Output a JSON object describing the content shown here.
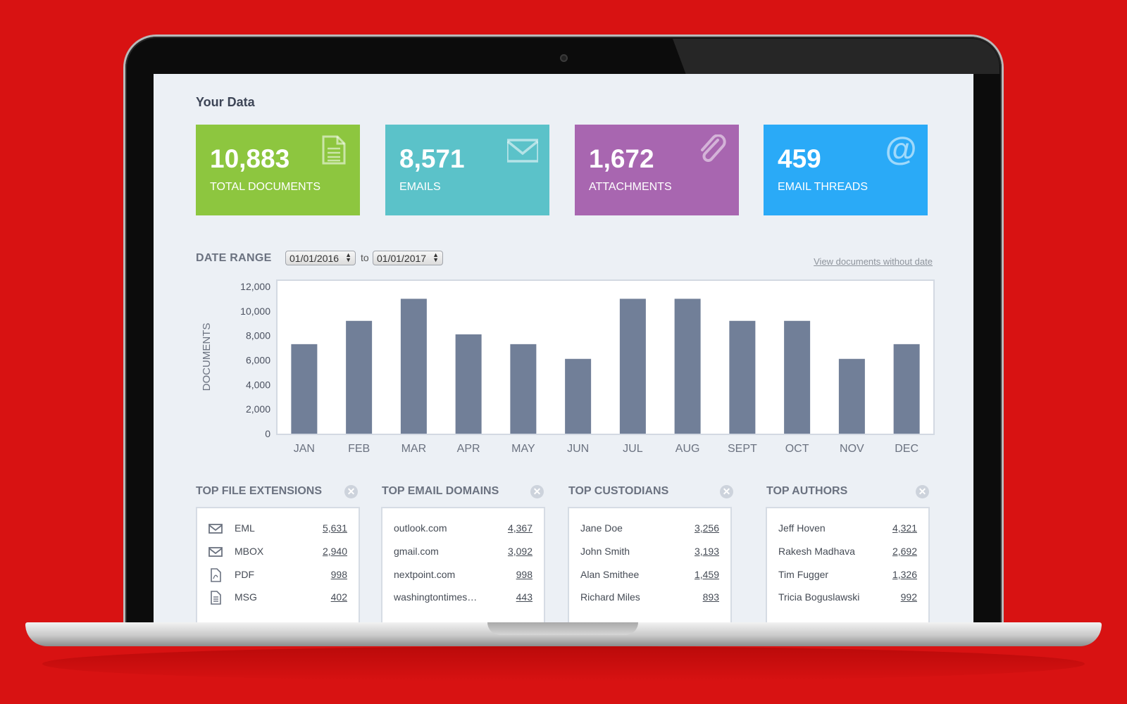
{
  "header": {
    "title": "Your Data"
  },
  "stats": [
    {
      "value": "10,883",
      "label": "TOTAL DOCUMENTS",
      "icon": "document-icon",
      "color": "#8dc63f"
    },
    {
      "value": "8,571",
      "label": "EMAILS",
      "icon": "envelope-icon",
      "color": "#5bc2c9"
    },
    {
      "value": "1,672",
      "label": "ATTACHMENTS",
      "icon": "paperclip-icon",
      "color": "#a866b0"
    },
    {
      "value": "459",
      "label": "EMAIL THREADS",
      "icon": "at-sign-icon",
      "color": "#2aaaf7"
    }
  ],
  "date_range": {
    "label": "DATE RANGE",
    "from": "01/01/2016",
    "to_label": "to",
    "to": "01/01/2017",
    "view_link": "View documents without date"
  },
  "chart_data": {
    "type": "bar",
    "categories": [
      "JAN",
      "FEB",
      "MAR",
      "APR",
      "MAY",
      "JUN",
      "JUL",
      "AUG",
      "SEPT",
      "OCT",
      "NOV",
      "DEC"
    ],
    "values": [
      7300,
      9200,
      11000,
      8100,
      7300,
      6100,
      11000,
      11000,
      9200,
      9200,
      6100,
      7300
    ],
    "ylabel": "DOCUMENTS",
    "ylim": [
      0,
      12000
    ],
    "yticks": [
      "12,000",
      "10,000",
      "8,000",
      "6,000",
      "4,000",
      "2,000",
      "0"
    ],
    "bar_color": "#717f98",
    "grid": false
  },
  "panels": [
    {
      "title": "TOP FILE EXTENSIONS",
      "rows": [
        {
          "name": "EML",
          "count": "5,631",
          "icon": "envelope-icon"
        },
        {
          "name": "MBOX",
          "count": "2,940",
          "icon": "envelope-icon"
        },
        {
          "name": "PDF",
          "count": "998",
          "icon": "pdf-file-icon"
        },
        {
          "name": "MSG",
          "count": "402",
          "icon": "document-icon"
        }
      ]
    },
    {
      "title": "TOP EMAIL DOMAINS",
      "rows": [
        {
          "name": "outlook.com",
          "count": "4,367"
        },
        {
          "name": "gmail.com",
          "count": "3,092"
        },
        {
          "name": "nextpoint.com",
          "count": "998"
        },
        {
          "name": "washingtontimes…",
          "count": "443"
        }
      ]
    },
    {
      "title": "TOP CUSTODIANS",
      "rows": [
        {
          "name": "Jane Doe",
          "count": "3,256"
        },
        {
          "name": "John Smith",
          "count": "3,193"
        },
        {
          "name": "Alan Smithee",
          "count": "1,459"
        },
        {
          "name": "Richard Miles",
          "count": "893"
        }
      ]
    },
    {
      "title": "TOP AUTHORS",
      "rows": [
        {
          "name": "Jeff Hoven",
          "count": "4,321"
        },
        {
          "name": "Rakesh Madhava",
          "count": "2,692"
        },
        {
          "name": "Tim Fugger",
          "count": "1,326"
        },
        {
          "name": "Tricia Boguslawski",
          "count": "992"
        }
      ]
    }
  ]
}
